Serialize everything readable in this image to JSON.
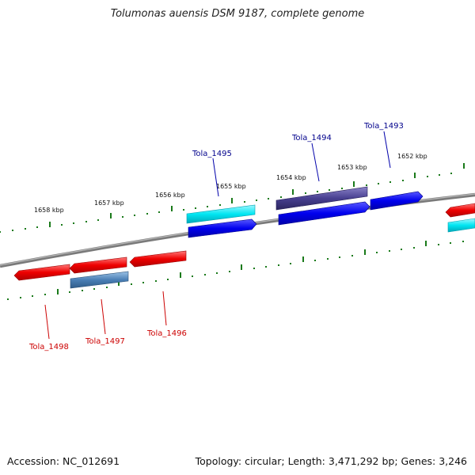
{
  "title": "Tolumonas auensis DSM 9187, complete genome",
  "footer": {
    "accession": "Accession: NC_012691",
    "summary": "Topology: circular; Length: 3,471,292 bp; Genes: 3,246"
  },
  "scale_labels": [
    "1658 kbp",
    "1657 kbp",
    "1656 kbp",
    "1655 kbp",
    "1654 kbp",
    "1653 kbp",
    "1652 kbp"
  ],
  "genes": [
    {
      "id": "Tola_1493",
      "strand": "forward",
      "color": "#0000ee",
      "label_color": "#00008b"
    },
    {
      "id": "Tola_1494",
      "strand": "forward",
      "color": "#484090",
      "label_color": "#00008b"
    },
    {
      "id": "Tola_1495",
      "strand": "forward",
      "color": "#00e0ee",
      "label_color": "#00008b"
    },
    {
      "id": "Tola_1496",
      "strand": "reverse",
      "color": "#ee0000",
      "label_color": "#cc0000"
    },
    {
      "id": "Tola_1497",
      "strand": "reverse",
      "color": "#ee0000",
      "label_color": "#cc0000"
    },
    {
      "id": "Tola_1498",
      "strand": "reverse",
      "color": "#ee0000",
      "label_color": "#cc0000"
    }
  ],
  "colors": {
    "backbone": "#888888",
    "tick": "#1a7a1a",
    "forward_gene": "#0000ee",
    "forward_rna": "#00e0ee",
    "reverse_gene": "#ee0000",
    "reverse_rna": "#4a7fb5",
    "other_feature": "#484090"
  }
}
